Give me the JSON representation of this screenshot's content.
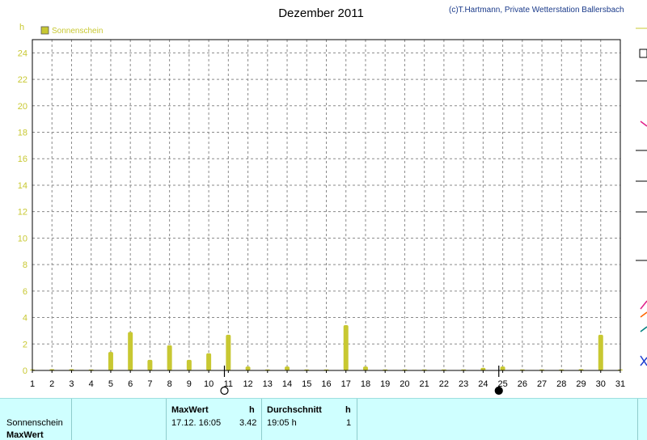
{
  "title": "Dezember 2011",
  "copyright": "(c)T.Hartmann, Private Wetterstation Ballersbach",
  "colors": {
    "series": "#c8c832",
    "grid": "#8a8a8a",
    "footer_bg": "#cfffff"
  },
  "chart_data": {
    "type": "bar",
    "ylabel": "h",
    "ylim": [
      0,
      25
    ],
    "yticks": [
      0,
      2,
      4,
      6,
      8,
      10,
      12,
      14,
      16,
      18,
      20,
      22,
      24
    ],
    "xlim": [
      1,
      31
    ],
    "xticks": [
      1,
      2,
      3,
      4,
      5,
      6,
      7,
      8,
      9,
      10,
      11,
      12,
      13,
      14,
      15,
      16,
      17,
      18,
      19,
      20,
      21,
      22,
      23,
      24,
      25,
      26,
      27,
      28,
      29,
      30,
      31
    ],
    "grid": true,
    "legend_position": "top-left",
    "series": [
      {
        "name": "Sonnenschein",
        "x": [
          1,
          2,
          3,
          4,
          5,
          6,
          7,
          8,
          9,
          10,
          11,
          12,
          13,
          14,
          15,
          16,
          17,
          18,
          19,
          20,
          21,
          22,
          23,
          24,
          25,
          26,
          27,
          28,
          29,
          30,
          31
        ],
        "values": [
          0,
          0.1,
          0.1,
          0,
          1.4,
          2.9,
          0.8,
          1.9,
          0.8,
          1.3,
          2.7,
          0.3,
          0,
          0.3,
          0,
          0,
          3.42,
          0.3,
          0,
          0,
          0,
          0,
          0,
          0.2,
          0.3,
          0,
          0,
          0,
          0.1,
          2.7,
          0
        ]
      }
    ],
    "moon_phases": [
      {
        "day": 10.8,
        "phase": "full"
      },
      {
        "day": 24.8,
        "phase": "new"
      }
    ]
  },
  "footer": {
    "rows": [
      "Sonnenschein",
      "MaxWert"
    ],
    "max_header": "MaxWert",
    "max_unit": "h",
    "max_time": "17.12.  16:05",
    "max_value": "3.42",
    "avg_header": "Durchschnitt",
    "avg_unit": "h",
    "avg_time": "19:05 h",
    "avg_value": "1"
  }
}
